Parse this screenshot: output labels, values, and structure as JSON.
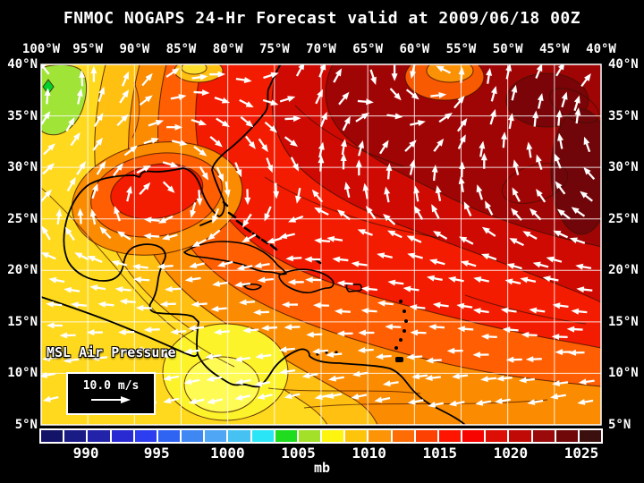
{
  "title": "FNMOC NOGAPS 24-Hr Forecast valid at 2009/06/18 00Z",
  "map": {
    "lon_labels": [
      "100°W",
      "95°W",
      "90°W",
      "85°W",
      "80°W",
      "75°W",
      "70°W",
      "65°W",
      "60°W",
      "55°W",
      "50°W",
      "45°W",
      "40°W"
    ],
    "lat_labels": [
      "40°N",
      "35°N",
      "30°N",
      "25°N",
      "20°N",
      "15°N",
      "10°N",
      "5°N"
    ],
    "field_label": "MSL Air Pressure",
    "wind_legend_label": "10.0 m/s"
  },
  "colorbar": {
    "tick_labels": [
      "990",
      "995",
      "1000",
      "1005",
      "1010",
      "1015",
      "1020",
      "1025"
    ],
    "unit_label": "mb",
    "cell_colors": [
      "#131368",
      "#1b1b86",
      "#2323aa",
      "#2a2ad2",
      "#2d3df0",
      "#2f63f2",
      "#3f87f2",
      "#4fa6f4",
      "#46c2f2",
      "#2ae5f6",
      "#1fdc1f",
      "#a2e02a",
      "#fdf410",
      "#fdc40c",
      "#fd9407",
      "#fd6c05",
      "#fd4103",
      "#fd1501",
      "#f70300",
      "#dd0e05",
      "#c00a05",
      "#9b0a0a",
      "#70080a",
      "#3a0f0d"
    ]
  },
  "colors": {
    "background": "#000000",
    "text": "#ffffff",
    "grid": "#ffffff",
    "coastline": "#000000",
    "arrow": "#ffffff"
  }
}
